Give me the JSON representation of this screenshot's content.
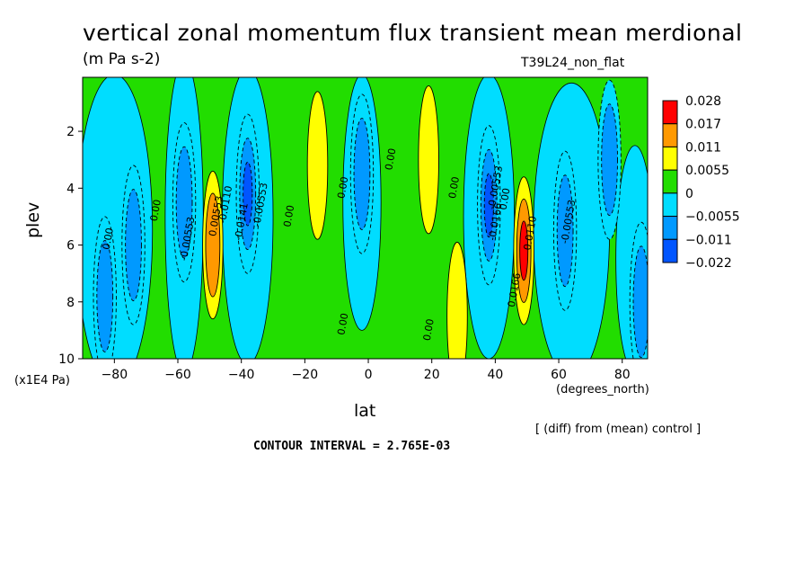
{
  "title": "vertical zonal momentum flux transient mean merdional",
  "units": "(m Pa s-2)",
  "run_label": "T39L24_non_flat",
  "x_unit": "(degrees_north)",
  "y_unit": "(x1E4 Pa)",
  "diff_note": "[ (diff) from (mean) control ]",
  "contour_interval": "CONTOUR INTERVAL = 2.765E-03",
  "chart_data": {
    "type": "heatmap",
    "xlabel": "lat",
    "ylabel": "plev",
    "xlim": [
      -90,
      88
    ],
    "ylim": [
      10,
      0.1
    ],
    "x_ticks": [
      -80,
      -60,
      -40,
      -20,
      0,
      20,
      40,
      60,
      80
    ],
    "x_tick_labels": [
      "−80",
      "−60",
      "−40",
      "−20",
      "0",
      "20",
      "40",
      "60",
      "80"
    ],
    "y_ticks": [
      2,
      4,
      6,
      8,
      10
    ],
    "y_tick_labels": [
      "2",
      "4",
      "6",
      "8",
      "10"
    ],
    "colorbar": {
      "levels": [
        0.028,
        0.017,
        0.011,
        0.0055,
        0,
        -0.0055,
        -0.011,
        -0.022
      ],
      "labels": [
        "0.028",
        "0.017",
        "0.011",
        "0.0055",
        "0",
        "−0.0055",
        "−0.011",
        "−0.022"
      ],
      "colors": [
        "#ff0000",
        "#ff9900",
        "#ffff00",
        "#22dd00",
        "#00ddff",
        "#0099ff",
        "#0055ff"
      ]
    },
    "features": [
      {
        "lat": -83,
        "plev": 7.8,
        "sign": "negative",
        "peak_class": -0.0055
      },
      {
        "lat": -74,
        "plev": 6.0,
        "sign": "negative",
        "peak_class": -0.0055
      },
      {
        "lat": -58,
        "plev": 4.5,
        "sign": "negative",
        "peak_class": -0.0055
      },
      {
        "lat": -49,
        "plev": 6.0,
        "sign": "positive",
        "peak_class": 0.011
      },
      {
        "lat": -38,
        "plev": 4.2,
        "sign": "negative",
        "peak_class": -0.011
      },
      {
        "lat": -16,
        "plev": 3.2,
        "sign": "positive",
        "peak_class": 0.0055
      },
      {
        "lat": -2,
        "plev": 3.5,
        "sign": "negative",
        "peak_class": -0.0055
      },
      {
        "lat": 19,
        "plev": 3.0,
        "sign": "positive",
        "peak_class": 0.0055
      },
      {
        "lat": 28,
        "plev": 8.5,
        "sign": "positive",
        "peak_class": 0.0055
      },
      {
        "lat": 38,
        "plev": 4.6,
        "sign": "negative",
        "peak_class": -0.011
      },
      {
        "lat": 49,
        "plev": 6.2,
        "sign": "positive",
        "peak_class": 0.017
      },
      {
        "lat": 62,
        "plev": 5.5,
        "sign": "negative",
        "peak_class": -0.0055
      },
      {
        "lat": 76,
        "plev": 3.0,
        "sign": "negative",
        "peak_class": -0.0055
      },
      {
        "lat": 86,
        "plev": 8.0,
        "sign": "negative",
        "peak_class": -0.0055
      }
    ],
    "contour_labels": [
      {
        "text": "0.00",
        "lat": -81,
        "plev": 5.8
      },
      {
        "text": "0.00",
        "lat": -66,
        "plev": 4.8
      },
      {
        "text": "-0.00553",
        "lat": -56,
        "plev": 5.8
      },
      {
        "text": "0.00553",
        "lat": -47,
        "plev": 5.0
      },
      {
        "text": "-0.0110",
        "lat": -44,
        "plev": 4.6
      },
      {
        "text": "-0.0141",
        "lat": -39,
        "plev": 5.2
      },
      {
        "text": "-0.00553",
        "lat": -33,
        "plev": 4.6
      },
      {
        "text": "0.00",
        "lat": -24,
        "plev": 5.0
      },
      {
        "text": "0.00",
        "lat": -7,
        "plev": 8.8
      },
      {
        "text": "0.00",
        "lat": -7,
        "plev": 4.0
      },
      {
        "text": "0.00",
        "lat": 8,
        "plev": 3.0
      },
      {
        "text": "0.00",
        "lat": 20,
        "plev": 9.0
      },
      {
        "text": "0.00",
        "lat": 28,
        "plev": 4.0
      },
      {
        "text": "-0.00553",
        "lat": 41,
        "plev": 4.0
      },
      {
        "text": "-0.0166",
        "lat": 41,
        "plev": 5.2
      },
      {
        "text": "0.00",
        "lat": 44,
        "plev": 4.4
      },
      {
        "text": "0.0166",
        "lat": 47,
        "plev": 7.6
      },
      {
        "text": "0.0110",
        "lat": 52,
        "plev": 5.6
      },
      {
        "text": "-0.00553",
        "lat": 64,
        "plev": 5.2
      }
    ]
  }
}
